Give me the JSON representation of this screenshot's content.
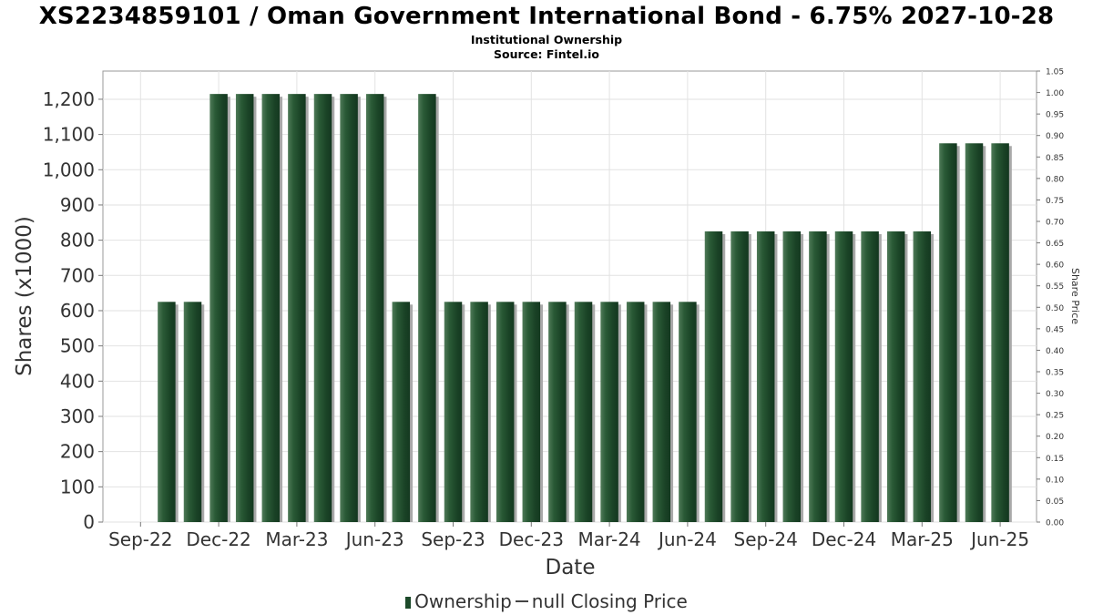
{
  "chart_data": {
    "type": "bar",
    "title": "XS2234859101 / Oman Government International Bond - 6.75% 2027-10-28",
    "subtitle_lines": [
      "Institutional Ownership",
      "Source: Fintel.io"
    ],
    "xlabel": "Date",
    "ylabel": "Shares (x1000)",
    "y2label": "Share Price",
    "ylim": [
      0,
      1280
    ],
    "y2lim": [
      0,
      1.05
    ],
    "yticks": [
      0,
      100,
      200,
      300,
      400,
      500,
      600,
      700,
      800,
      900,
      1000,
      1100,
      1200
    ],
    "ytick_labels": [
      "0",
      "100",
      "200",
      "300",
      "400",
      "500",
      "600",
      "700",
      "800",
      "900",
      "1,000",
      "1,100",
      "1,200"
    ],
    "y2ticks": [
      "0.00",
      "0.05",
      "0.10",
      "0.15",
      "0.20",
      "0.25",
      "0.30",
      "0.35",
      "0.40",
      "0.45",
      "0.50",
      "0.55",
      "0.60",
      "0.65",
      "0.70",
      "0.75",
      "0.80",
      "0.85",
      "0.90",
      "0.95",
      "1.00",
      "1.05"
    ],
    "xtick_labels": [
      "Sep-22",
      "Dec-22",
      "Mar-23",
      "Jun-23",
      "Sep-23",
      "Dec-23",
      "Mar-24",
      "Jun-24",
      "Sep-24",
      "Dec-24",
      "Mar-25",
      "Jun-25"
    ],
    "grid": true,
    "legend_position": "bottom",
    "series": [
      {
        "name": "Ownership",
        "color": "#1d4a2a",
        "values": [
          625,
          625,
          1215,
          1215,
          1215,
          1215,
          1215,
          1215,
          1215,
          625,
          1215,
          625,
          625,
          625,
          625,
          625,
          625,
          625,
          625,
          625,
          625,
          825,
          825,
          825,
          825,
          825,
          825,
          825,
          825,
          825,
          1075,
          1075,
          1075
        ]
      }
    ],
    "bar_slots": [
      2,
      3,
      4,
      5,
      6,
      7,
      8,
      9,
      10,
      11,
      12,
      13,
      14,
      15,
      16,
      17,
      18,
      19,
      20,
      21,
      22,
      23,
      24,
      25,
      26,
      27,
      28,
      29,
      30,
      31,
      32,
      33,
      34
    ],
    "legend_labels": [
      "Ownership",
      "null Closing Price"
    ]
  }
}
